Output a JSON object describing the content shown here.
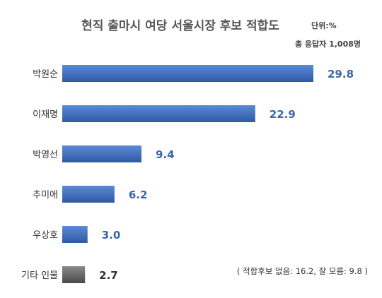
{
  "chart_data": {
    "type": "bar",
    "orientation": "horizontal",
    "title": "현직 출마시 여당 서울시장 후보 적합도",
    "unit_label": "단위:%",
    "respondents_label": "총 응답자 1,008명",
    "categories": [
      "박원순",
      "이재명",
      "박영선",
      "추미애",
      "우상호",
      "기타 인물"
    ],
    "values": [
      29.8,
      22.9,
      9.4,
      6.2,
      3.0,
      2.7
    ],
    "value_labels": [
      "29.8",
      "22.9",
      "9.4",
      "6.2",
      "3.0",
      "2.7"
    ],
    "xlim": [
      0,
      29.8
    ],
    "grid": false,
    "legend": "none",
    "footnote": "( 적합후보 없음: 16.2, 잘 모름: 9.8 )",
    "colors": {
      "primary": "#3a67b5",
      "primary_light": "#5a8ad6",
      "other": "#555555",
      "other_light": "#8a8a8a",
      "value_text": "#3a67a8"
    }
  }
}
